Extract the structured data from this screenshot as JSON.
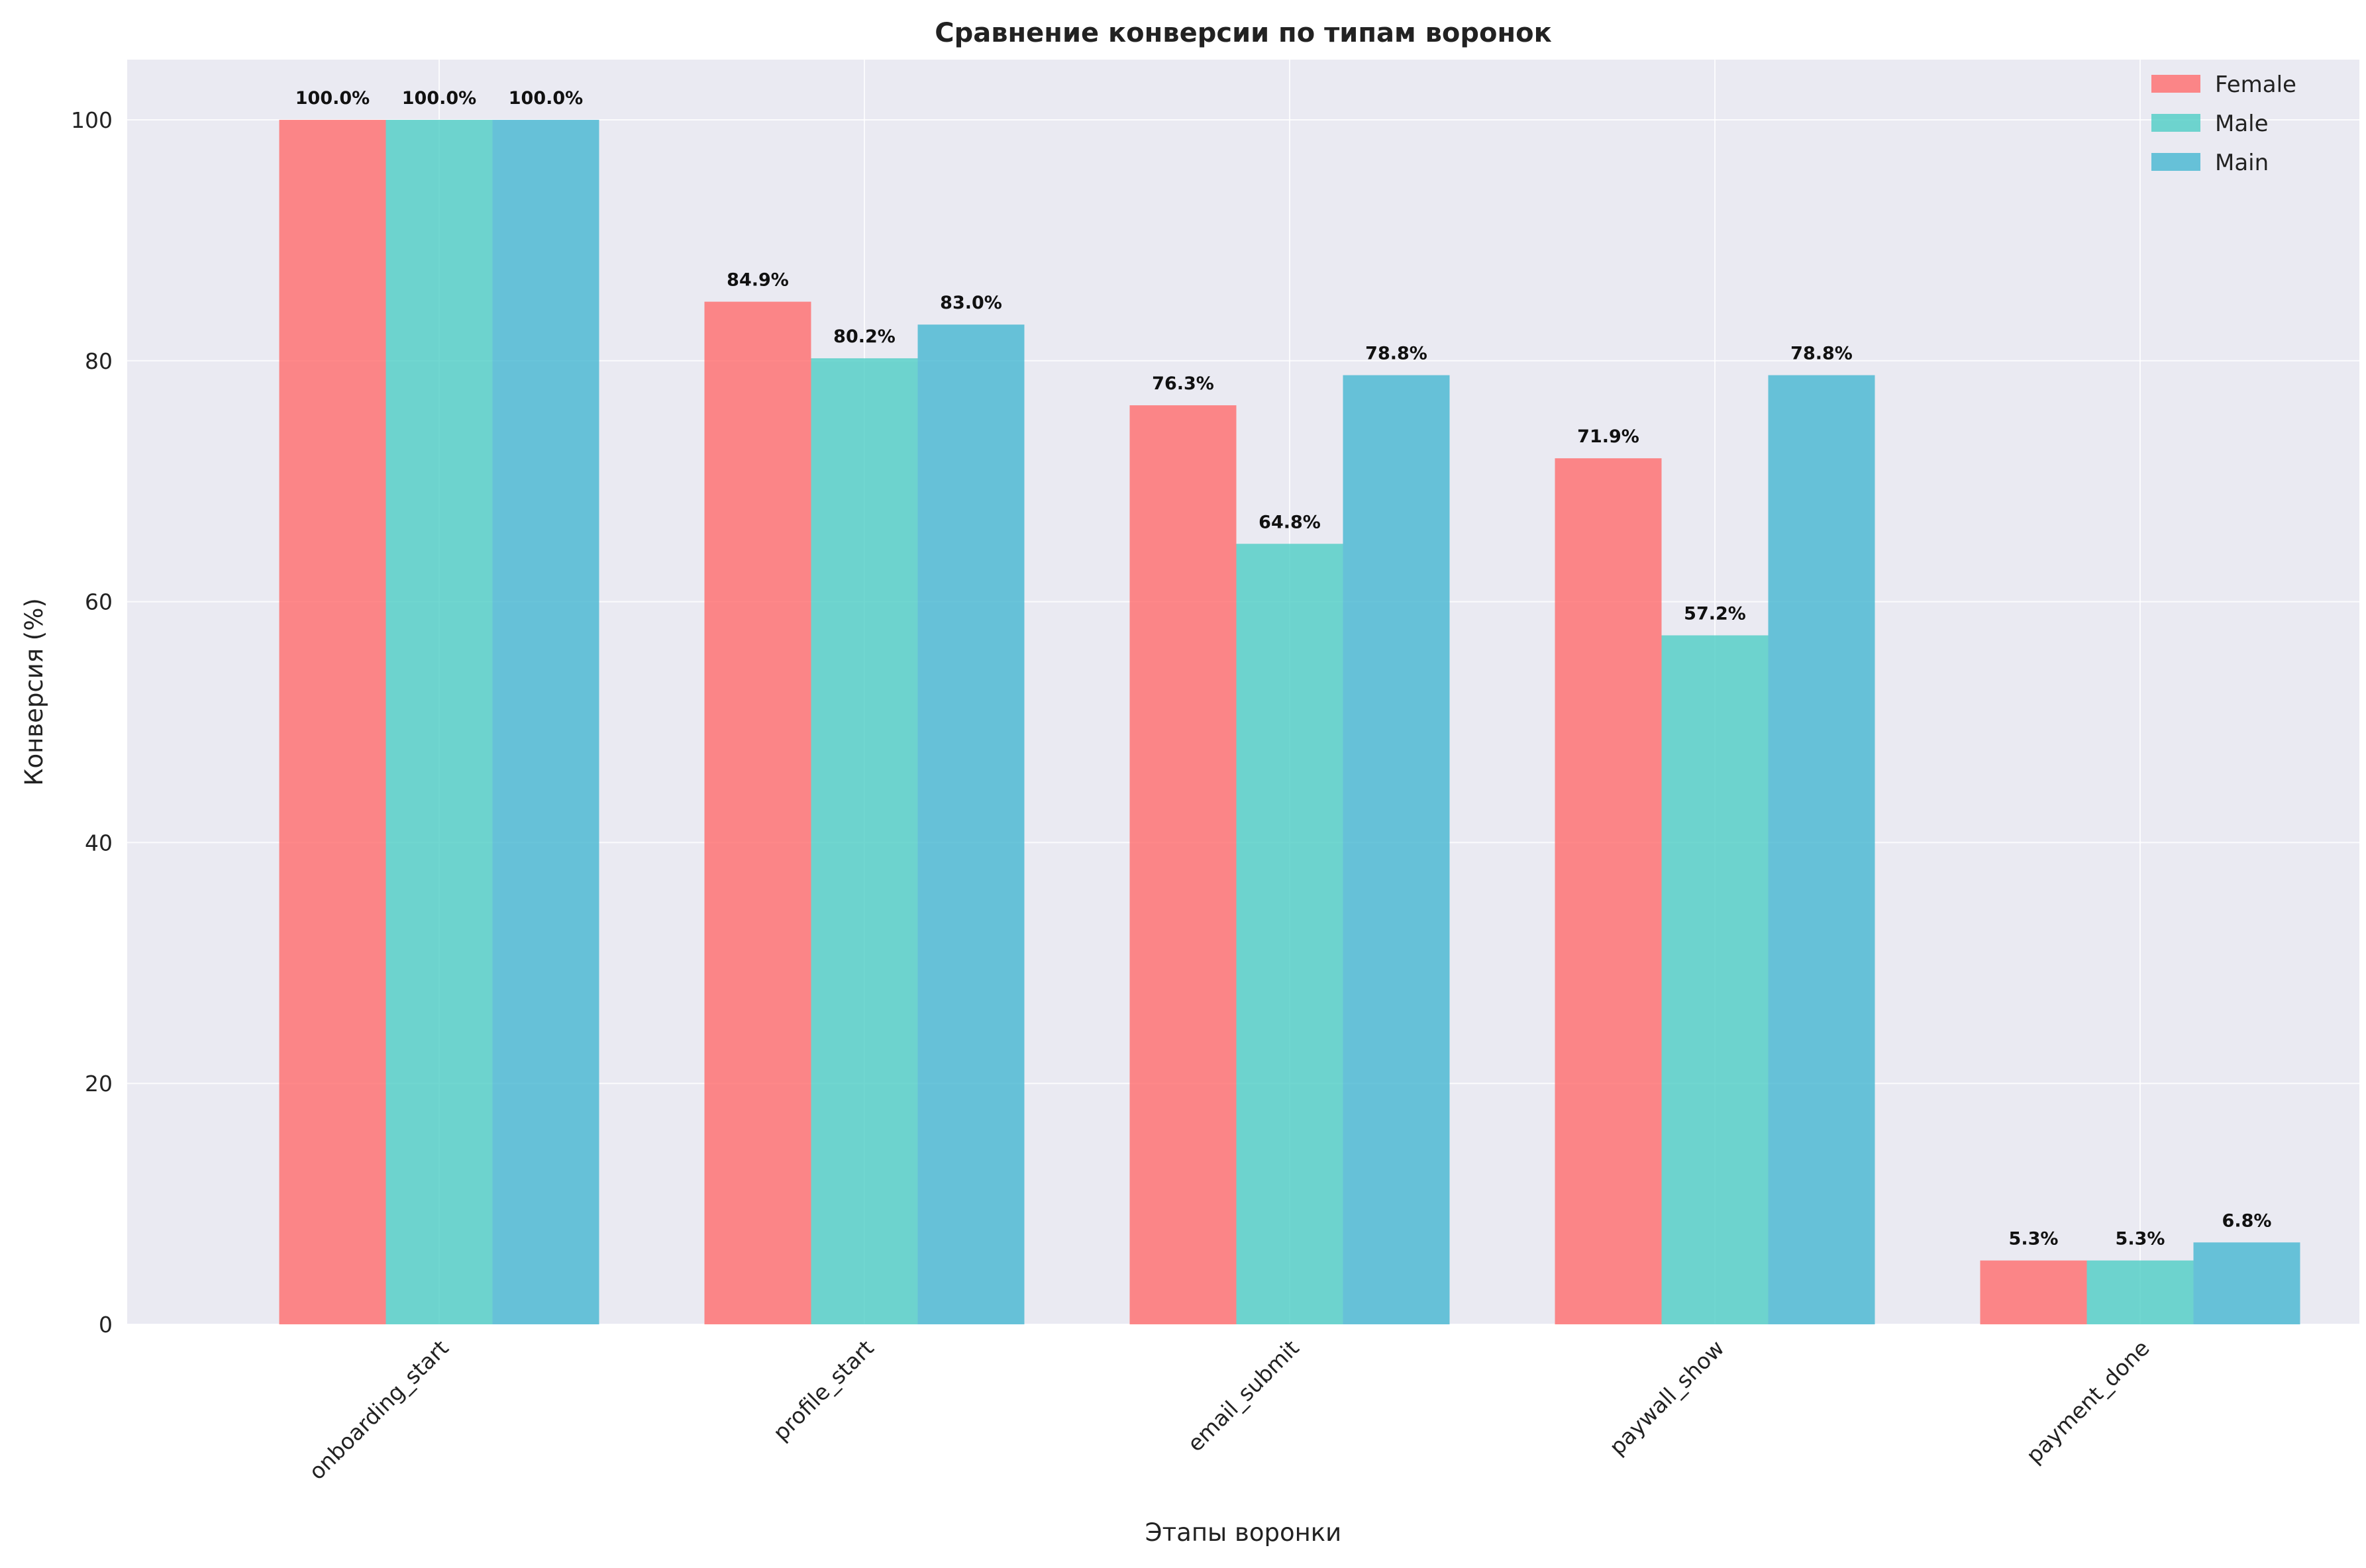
{
  "chart_data": {
    "type": "bar",
    "title": "Сравнение конверсии по типам воронок",
    "xlabel": "Этапы воронки",
    "ylabel": "Конверсия (%)",
    "ylim": [
      0,
      105
    ],
    "yticks": [
      0,
      20,
      40,
      60,
      80,
      100
    ],
    "categories": [
      "onboarding_start",
      "profile_start",
      "email_submit",
      "paywall_show",
      "payment_done"
    ],
    "series": [
      {
        "name": "Female",
        "color": "#FF6B6B",
        "values": [
          100.0,
          84.9,
          76.3,
          71.9,
          5.3
        ],
        "labels": [
          "100.0%",
          "84.9%",
          "76.3%",
          "71.9%",
          "5.3%"
        ]
      },
      {
        "name": "Male",
        "color": "#4ECDC4",
        "values": [
          100.0,
          80.2,
          64.8,
          57.2,
          5.3
        ],
        "labels": [
          "100.0%",
          "80.2%",
          "64.8%",
          "57.2%",
          "5.3%"
        ]
      },
      {
        "name": "Main",
        "color": "#45B7D1",
        "values": [
          100.0,
          83.0,
          78.8,
          78.8,
          6.8
        ],
        "labels": [
          "100.0%",
          "83.0%",
          "78.8%",
          "78.8%",
          "6.8%"
        ]
      }
    ],
    "grid": true,
    "legend_position": "top-right",
    "background_color": "#EAEAF2"
  }
}
